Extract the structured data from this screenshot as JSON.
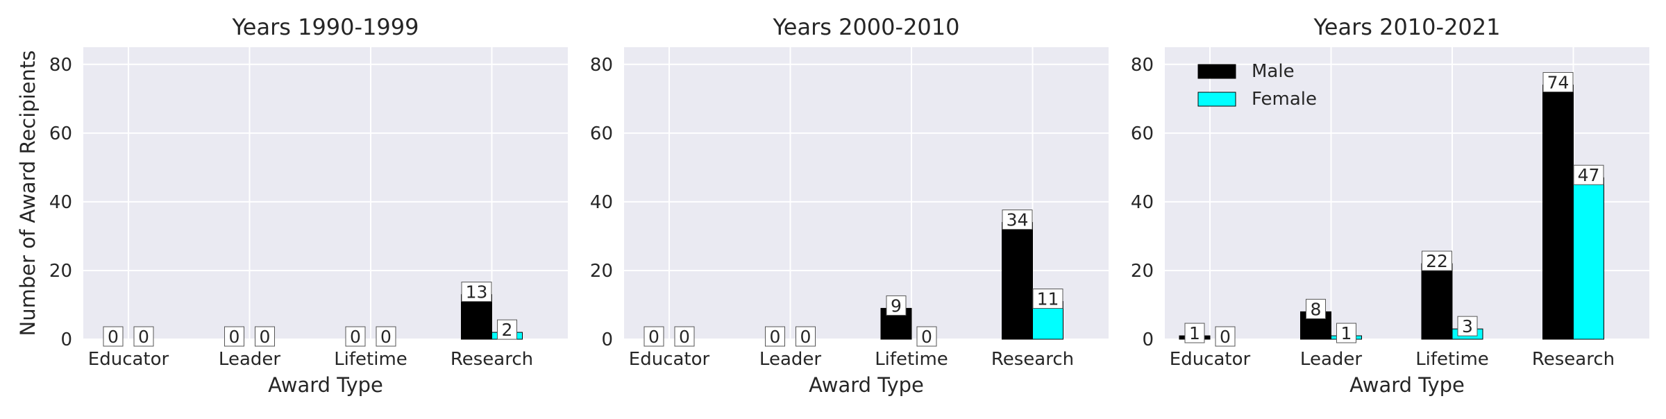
{
  "colors": {
    "panel_bg": "#EAEAF2",
    "grid": "#FFFFFF",
    "male": "#000000",
    "female": "#00FFFF",
    "text": "#262626"
  },
  "chart_data": [
    {
      "type": "bar",
      "title": "Years 1990-1999",
      "xlabel": "Award Type",
      "ylabel": "Number of Award Recipients",
      "categories": [
        "Educator",
        "Leader",
        "Lifetime",
        "Research"
      ],
      "series": [
        {
          "name": "Male",
          "values": [
            0,
            0,
            0,
            13
          ]
        },
        {
          "name": "Female",
          "values": [
            0,
            0,
            0,
            2
          ]
        }
      ],
      "ylim": [
        0,
        85
      ],
      "yticks": [
        0,
        20,
        40,
        60,
        80
      ],
      "grid": true,
      "legend": false
    },
    {
      "type": "bar",
      "title": "Years 2000-2010",
      "xlabel": "Award Type",
      "ylabel": "",
      "categories": [
        "Educator",
        "Leader",
        "Lifetime",
        "Research"
      ],
      "series": [
        {
          "name": "Male",
          "values": [
            0,
            0,
            9,
            34
          ]
        },
        {
          "name": "Female",
          "values": [
            0,
            0,
            0,
            11
          ]
        }
      ],
      "ylim": [
        0,
        85
      ],
      "yticks": [
        0,
        20,
        40,
        60,
        80
      ],
      "grid": true,
      "legend": false
    },
    {
      "type": "bar",
      "title": "Years 2010-2021",
      "xlabel": "Award Type",
      "ylabel": "",
      "categories": [
        "Educator",
        "Leader",
        "Lifetime",
        "Research"
      ],
      "series": [
        {
          "name": "Male",
          "values": [
            1,
            8,
            22,
            74
          ]
        },
        {
          "name": "Female",
          "values": [
            0,
            1,
            3,
            47
          ]
        }
      ],
      "ylim": [
        0,
        85
      ],
      "yticks": [
        0,
        20,
        40,
        60,
        80
      ],
      "grid": true,
      "legend": true,
      "legend_position": "top-left"
    }
  ]
}
